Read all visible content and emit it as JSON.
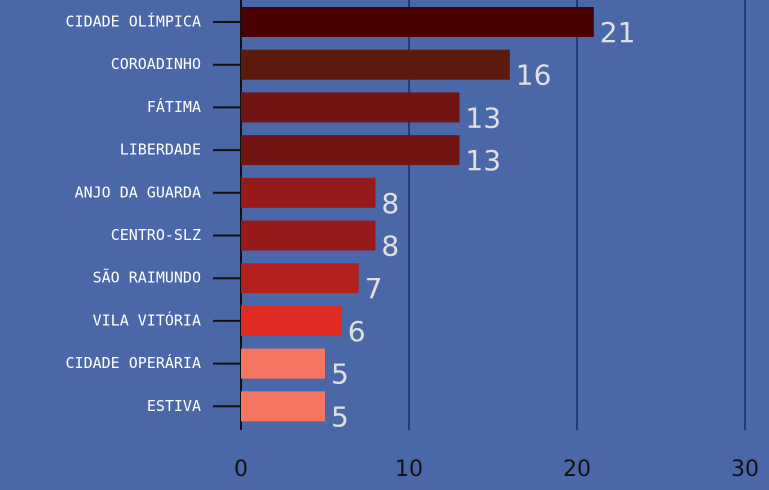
{
  "chart_data": {
    "type": "bar",
    "orientation": "horizontal",
    "categories": [
      "CIDADE OLÍMPICA",
      "COROADINHO",
      "FÁTIMA",
      "LIBERDADE",
      "ANJO DA GUARDA",
      "CENTRO-SLZ",
      "SÃO RAIMUNDO",
      "VILA VITÓRIA",
      "CIDADE OPERÁRIA",
      "ESTIVA"
    ],
    "values": [
      21,
      16,
      13,
      13,
      8,
      8,
      7,
      6,
      5,
      5
    ],
    "colors": [
      "#4a0000",
      "#5c1a0e",
      "#731414",
      "#731414",
      "#961a1a",
      "#961a1a",
      "#b3201e",
      "#e02a24",
      "#f47560",
      "#f47560"
    ],
    "xlim": [
      0,
      30
    ],
    "xticks": [
      0,
      10,
      20,
      30
    ],
    "grid": true
  }
}
